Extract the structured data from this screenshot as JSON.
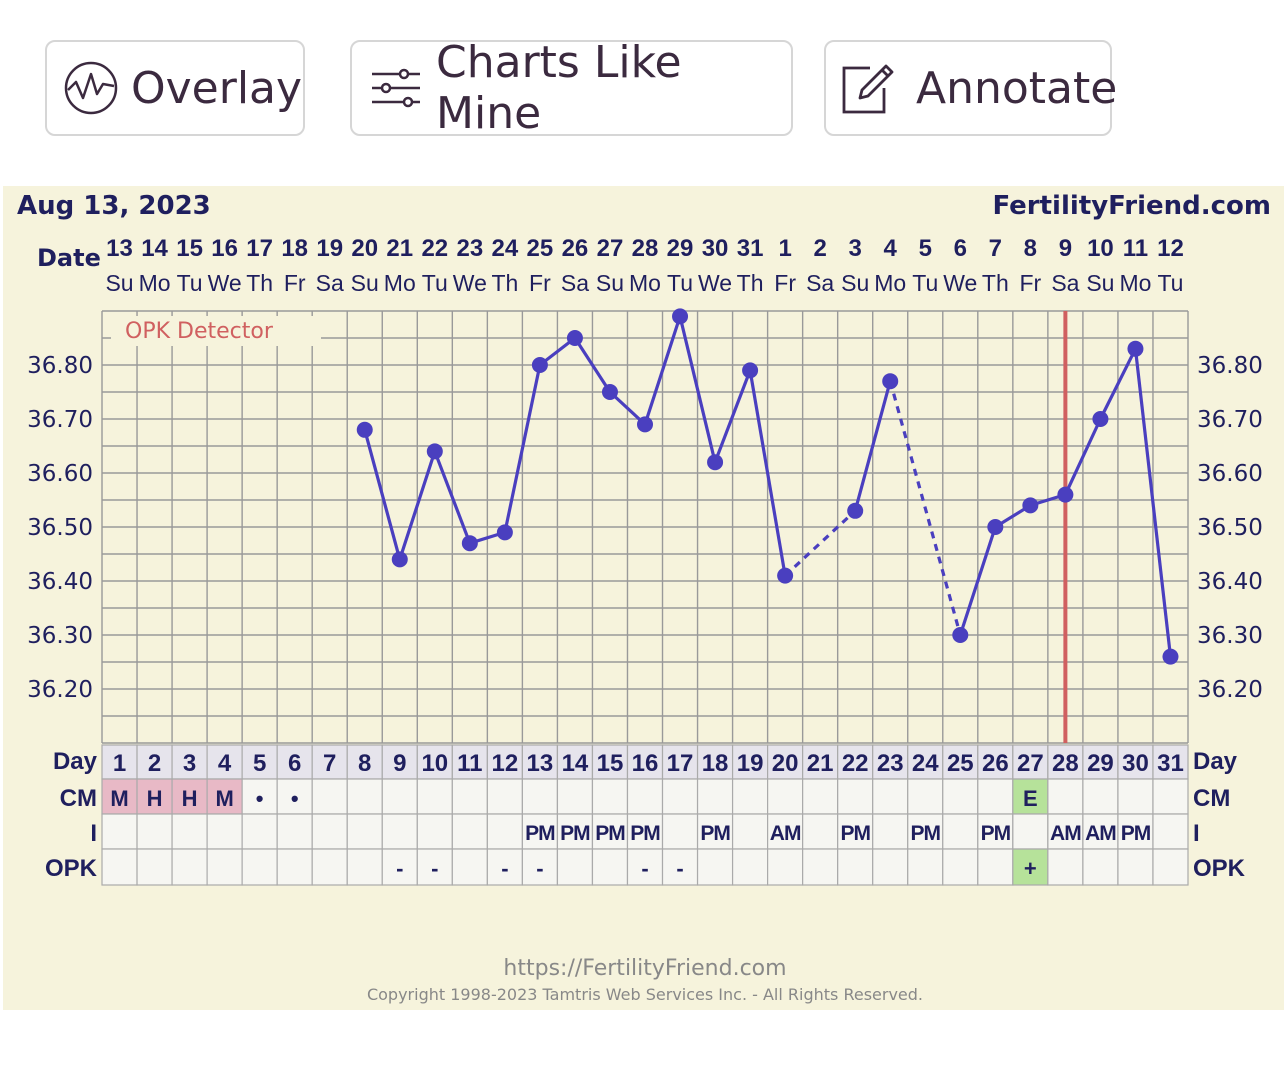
{
  "toolbar": {
    "overlay_label": "Overlay",
    "charts_like_mine_label": "Charts Like Mine",
    "annotate_label": "Annotate"
  },
  "icons": {
    "overlay": "wave-circle-icon",
    "charts_like_mine": "sliders-icon",
    "annotate": "edit-square-icon"
  },
  "colors": {
    "background": "#f6f3dc",
    "temp_line": "#4a3fbf",
    "ovulation_line": "#d06060",
    "period_cell": "#e8b9c6",
    "fertile_cell": "#b6e29a",
    "label_text": "#1f1f5e",
    "opk_label": "#d06060",
    "footer_text": "#888888"
  },
  "chart_data": {
    "type": "line",
    "title": "Aug 13, 2023",
    "brand": "FertilityFriend.com",
    "row_labels": {
      "date": "Date",
      "day": "Day",
      "cm": "CM",
      "i": "I",
      "opk": "OPK"
    },
    "opk_detector_label": "OPK Detector",
    "dates": [
      "13",
      "14",
      "15",
      "16",
      "17",
      "18",
      "19",
      "20",
      "21",
      "22",
      "23",
      "24",
      "25",
      "26",
      "27",
      "28",
      "29",
      "30",
      "31",
      "1",
      "2",
      "3",
      "4",
      "5",
      "6",
      "7",
      "8",
      "9",
      "10",
      "11",
      "12"
    ],
    "weekdays": [
      "Su",
      "Mo",
      "Tu",
      "We",
      "Th",
      "Fr",
      "Sa",
      "Su",
      "Mo",
      "Tu",
      "We",
      "Th",
      "Fr",
      "Sa",
      "Su",
      "Mo",
      "Tu",
      "We",
      "Th",
      "Fr",
      "Sa",
      "Su",
      "Mo",
      "Tu",
      "We",
      "Th",
      "Fr",
      "Sa",
      "Su",
      "Mo",
      "Tu"
    ],
    "cycle_days": [
      "1",
      "2",
      "3",
      "4",
      "5",
      "6",
      "7",
      "8",
      "9",
      "10",
      "11",
      "12",
      "13",
      "14",
      "15",
      "16",
      "17",
      "18",
      "19",
      "20",
      "21",
      "22",
      "23",
      "24",
      "25",
      "26",
      "27",
      "28",
      "29",
      "30",
      "31"
    ],
    "y_ticks": [
      "36.80",
      "36.70",
      "36.60",
      "36.50",
      "36.40",
      "36.30",
      "36.20"
    ],
    "ylim": [
      36.1,
      36.9
    ],
    "grid": true,
    "temperatures": [
      null,
      null,
      null,
      null,
      null,
      null,
      null,
      36.68,
      36.44,
      36.64,
      36.47,
      36.49,
      36.8,
      36.85,
      36.75,
      36.69,
      36.89,
      36.62,
      36.79,
      36.41,
      null,
      36.53,
      36.77,
      null,
      36.3,
      36.5,
      36.54,
      36.56,
      36.7,
      36.83,
      36.26
    ],
    "ovulation_day": 28,
    "cm": [
      "M",
      "H",
      "H",
      "M",
      "•",
      "•",
      "",
      "",
      "",
      "",
      "",
      "",
      "",
      "",
      "",
      "",
      "",
      "",
      "",
      "",
      "",
      "",
      "",
      "",
      "",
      "",
      "E",
      "",
      "",
      "",
      ""
    ],
    "cm_period_days": [
      1,
      2,
      3,
      4
    ],
    "cm_fertile_days": [
      27
    ],
    "intercourse": [
      "",
      "",
      "",
      "",
      "",
      "",
      "",
      "",
      "",
      "",
      "",
      "",
      "PM",
      "PM",
      "PM",
      "PM",
      "",
      "PM",
      "",
      "AM",
      "",
      "PM",
      "",
      "PM",
      "",
      "PM",
      "",
      "AM",
      "AM",
      "PM",
      ""
    ],
    "opk": [
      "",
      "",
      "",
      "",
      "",
      "",
      "",
      "",
      "-",
      "-",
      "",
      "-",
      "-",
      "",
      "",
      "-",
      "-",
      "",
      "",
      "",
      "",
      "",
      "",
      "",
      "",
      "",
      "+",
      "",
      "",
      "",
      ""
    ],
    "opk_positive_days": [
      27
    ],
    "footer_url": "https://FertilityFriend.com",
    "footer_copyright": "Copyright 1998-2023 Tamtris Web Services Inc. - All Rights Reserved."
  }
}
